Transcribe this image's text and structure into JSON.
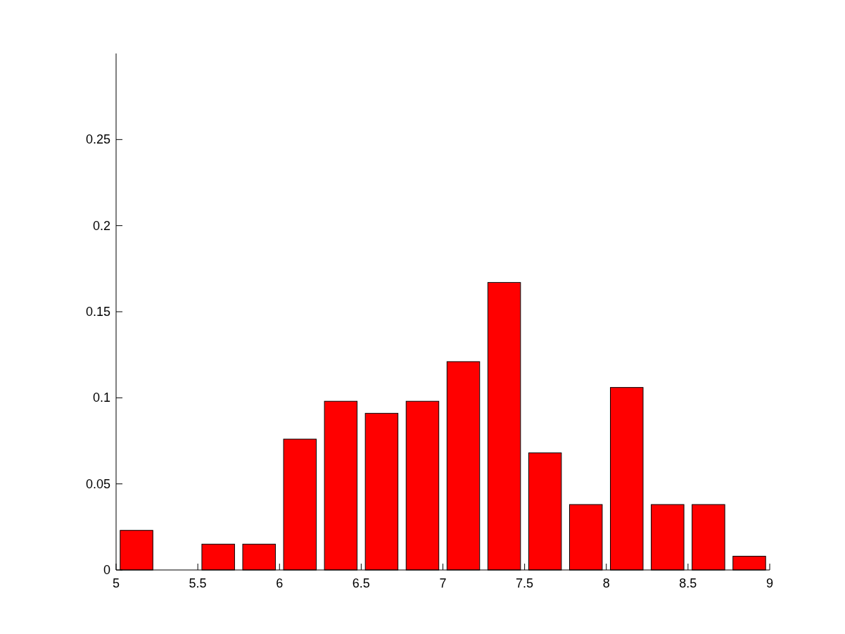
{
  "chart_data": {
    "type": "histogram",
    "bins": [
      5,
      5.25,
      5.5,
      5.75,
      6,
      6.25,
      6.5,
      6.75,
      7,
      7.25,
      7.5,
      7.75,
      8,
      8.25,
      8.5,
      8.75,
      9
    ],
    "values": [
      0.023,
      0,
      0.015,
      0.015,
      0.076,
      0.098,
      0.091,
      0.098,
      0.121,
      0.167,
      0.068,
      0.038,
      0.106,
      0.038,
      0.038,
      0.008
    ],
    "color": "#ff0000",
    "xlim": [
      5,
      9
    ],
    "xticks": [
      5,
      5.5,
      6,
      6.5,
      7,
      7.5,
      8,
      8.5,
      9
    ],
    "ylim": [
      0,
      0.3
    ],
    "yticks": [
      0,
      0.05,
      0.1,
      0.15,
      0.2,
      0.25
    ],
    "grid": false
  }
}
